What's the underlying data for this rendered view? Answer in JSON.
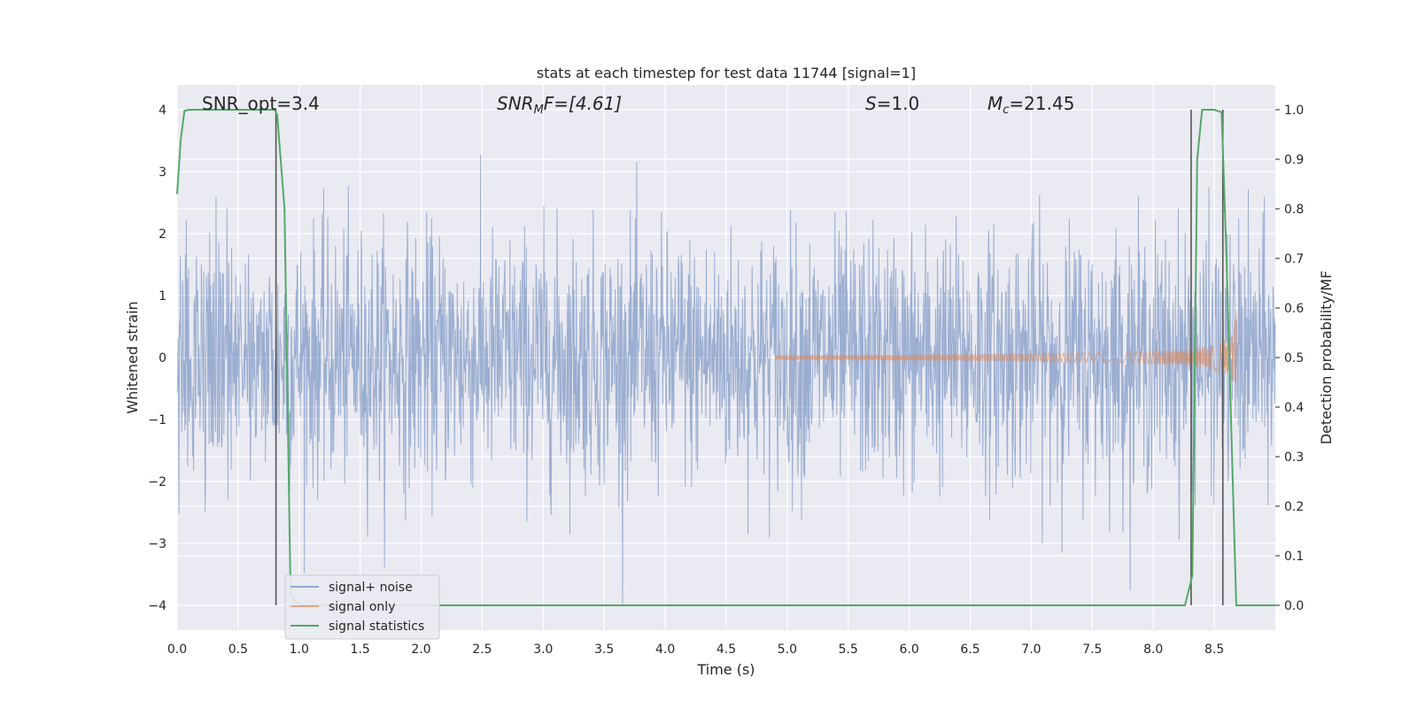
{
  "chart_data": {
    "type": "line",
    "title": "stats at each timestep for test data 11744 [signal=1]",
    "xlabel": "Time (s)",
    "ylabel": "Whitened strain",
    "ylabel_right": "Detection probability/MF",
    "xlim": [
      0.0,
      9.0
    ],
    "ylim": [
      -4.4,
      4.4
    ],
    "ylim_right": [
      -0.05,
      1.05
    ],
    "x_ticks": [
      "0.0",
      "0.5",
      "1.0",
      "1.5",
      "2.0",
      "2.5",
      "3.0",
      "3.5",
      "4.0",
      "4.5",
      "5.0",
      "5.5",
      "6.0",
      "6.5",
      "7.0",
      "7.5",
      "8.0",
      "8.5"
    ],
    "y_ticks": [
      "4",
      "3",
      "2",
      "1",
      "0",
      "−1",
      "−2",
      "−3",
      "−4"
    ],
    "y_ticks_right": [
      "1.0",
      "0.9",
      "0.8",
      "0.7",
      "0.6",
      "0.5",
      "0.4",
      "0.3",
      "0.2",
      "0.1",
      "0.0"
    ],
    "grid": true,
    "legend_position": "lower-left",
    "annotations": {
      "snr_opt": "SNR_opt=3.4",
      "snr_mf_sym": "SNR",
      "snr_mf_sub": "M",
      "snr_mf_rest": "F=[4.61]",
      "s_sym": "S",
      "s_rest": "=1.0",
      "mc_sym": "M",
      "mc_sub": "c",
      "mc_rest": "=21.45"
    },
    "series": [
      {
        "name": "signal+ noise",
        "color": "#4c72b0",
        "axis": "left",
        "amplitude_rms": 1.0,
        "max_abs": 4.0
      },
      {
        "name": "signal only",
        "color": "#dd8452",
        "axis": "left",
        "x_start": 4.9,
        "x_peak": 8.68,
        "peak_amplitude": 0.75
      },
      {
        "name": "signal statistics",
        "color": "#55a868",
        "axis": "right",
        "x": [
          0.0,
          0.03,
          0.06,
          0.1,
          0.2,
          0.3,
          0.4,
          0.5,
          0.6,
          0.7,
          0.8,
          0.82,
          0.88,
          0.93,
          1.0,
          2.0,
          3.0,
          4.0,
          5.0,
          6.0,
          7.0,
          8.0,
          8.26,
          8.32,
          8.36,
          8.4,
          8.5,
          8.56,
          8.6,
          8.68,
          9.0
        ],
        "y": [
          0.83,
          0.94,
          0.998,
          1.0,
          1.0,
          1.0,
          1.0,
          1.0,
          1.0,
          1.0,
          1.0,
          0.99,
          0.8,
          0.02,
          0.0,
          0.0,
          0.0,
          0.0,
          0.0,
          0.0,
          0.0,
          0.0,
          0.0,
          0.06,
          0.9,
          1.0,
          1.0,
          0.995,
          0.7,
          0.0,
          0.0
        ]
      }
    ],
    "vertical_lines": [
      0.81,
      8.31,
      8.57
    ]
  }
}
